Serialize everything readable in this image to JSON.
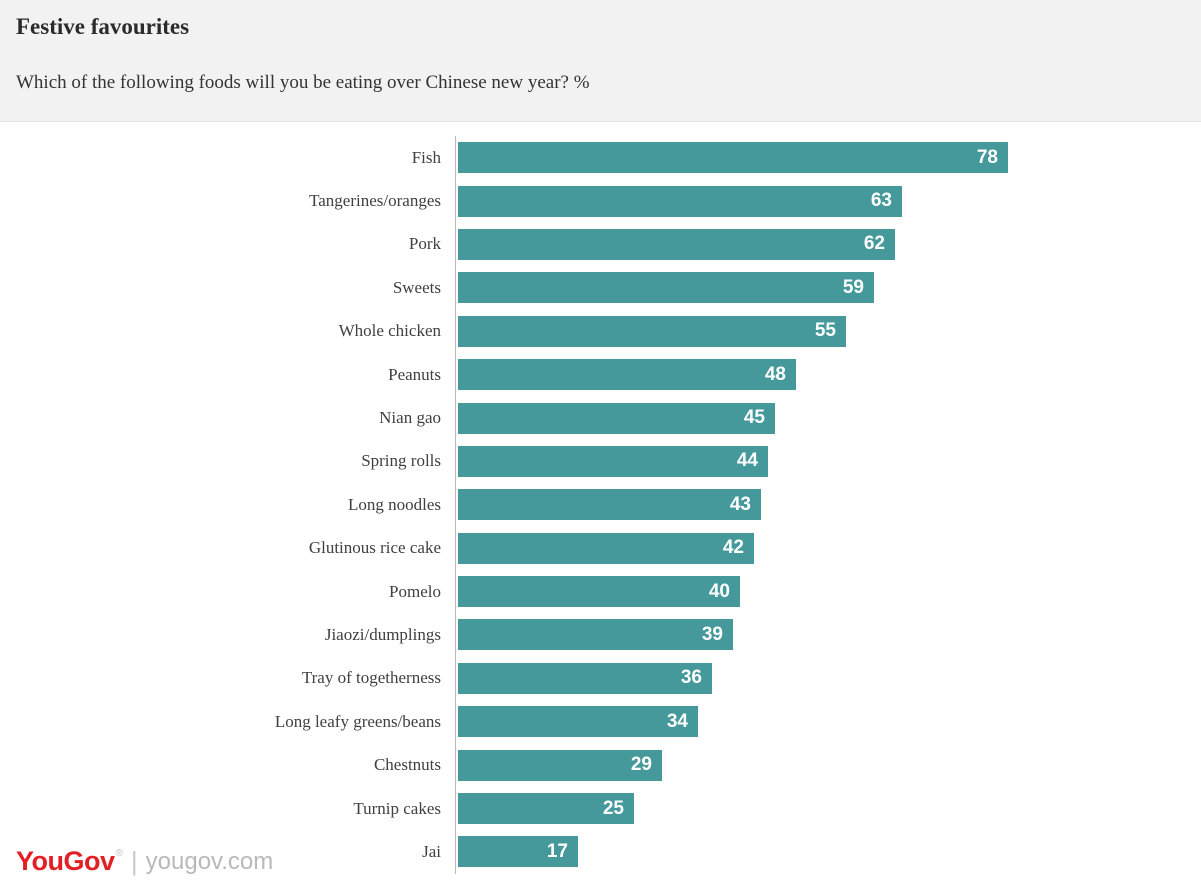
{
  "header": {
    "title": "Festive favourites",
    "subtitle": "Which of the following foods will you be eating over Chinese new year? %"
  },
  "footer": {
    "brand": "YouGov",
    "reg_mark": "®",
    "separator": "|",
    "domain": "yougov.com"
  },
  "colors": {
    "bar": "#46999b",
    "brand_red": "#e31f26",
    "header_bg": "#f2f2f2",
    "axis_line": "#b9b9b9"
  },
  "chart_data": {
    "type": "bar",
    "orientation": "horizontal",
    "title": "Festive favourites",
    "subtitle": "Which of the following foods will you be eating over Chinese new year? %",
    "xlabel": "",
    "ylabel": "",
    "xlim": [
      0,
      85
    ],
    "value_labels_position": "inside-end",
    "bar_color": "#46999b",
    "categories": [
      "Fish",
      "Tangerines/oranges",
      "Pork",
      "Sweets",
      "Whole chicken",
      "Peanuts",
      "Nian gao",
      "Spring rolls",
      "Long noodles",
      "Glutinous rice cake",
      "Pomelo",
      "Jiaozi/dumplings",
      "Tray of togetherness",
      "Long leafy greens/beans",
      "Chestnuts",
      "Turnip cakes",
      "Jai"
    ],
    "values": [
      78,
      63,
      62,
      59,
      55,
      48,
      45,
      44,
      43,
      42,
      40,
      39,
      36,
      34,
      29,
      25,
      17
    ]
  }
}
